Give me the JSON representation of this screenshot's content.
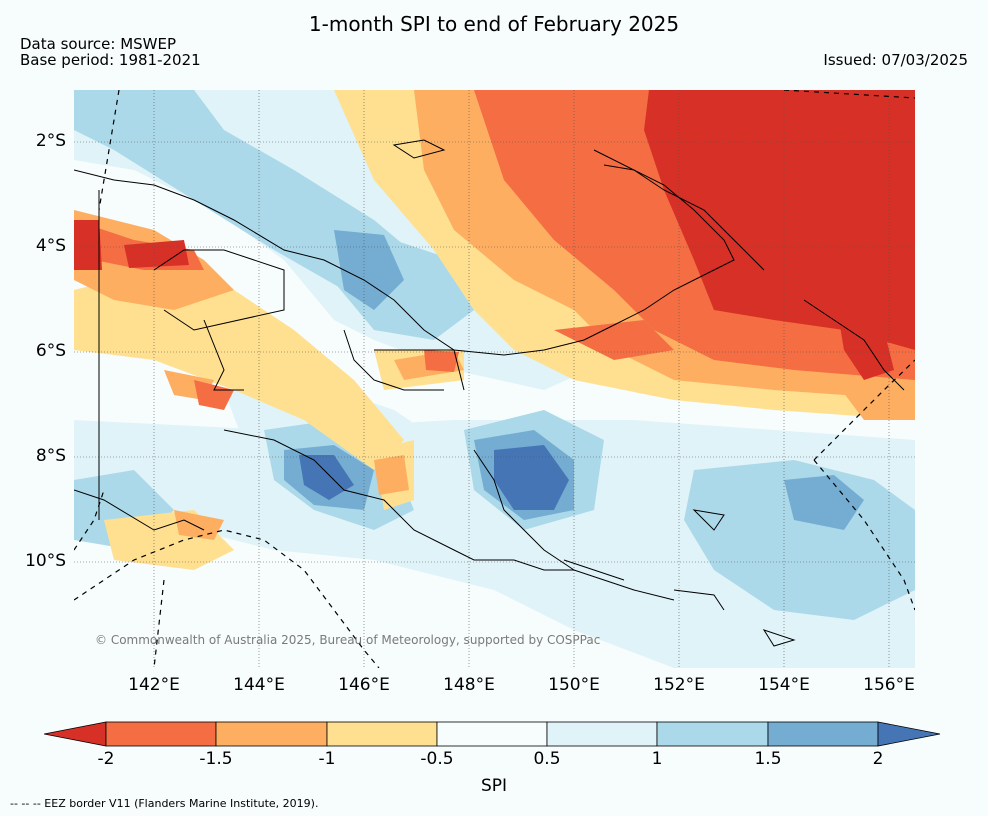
{
  "header": {
    "title": "1-month SPI to end of February 2025",
    "source_line": "Data source: MSWEP",
    "base_line": "Base period: 1981-2021",
    "issued": "Issued: 07/03/2025"
  },
  "map": {
    "lat_labels": [
      "2°S",
      "4°S",
      "6°S",
      "8°S",
      "10°S"
    ],
    "lon_labels": [
      "142°E",
      "144°E",
      "146°E",
      "148°E",
      "150°E",
      "152°E",
      "154°E",
      "156°E"
    ],
    "copyright": "© Commonwealth of Australia 2025, Bureau of Meteorology, supported by COSPPac"
  },
  "colorbar": {
    "label": "SPI",
    "ticks": [
      "-2",
      "-1.5",
      "-1",
      "-0.5",
      "0.5",
      "1",
      "1.5",
      "2"
    ],
    "colors": {
      "below_-2": "#d73027",
      "-2_-1.5": "#f46d43",
      "-1.5_-1": "#fdae61",
      "-1_-0.5": "#fee090",
      "-0.5_0.5": "#f7fcfd",
      "0.5_1": "#e0f3f8",
      "1_1.5": "#abd9e9",
      "1.5_2": "#74add1",
      "above_2": "#4575b4"
    }
  },
  "footer": {
    "eez_note": "-- -- -- EEZ border V11 (Flanders Marine Institute, 2019)."
  }
}
